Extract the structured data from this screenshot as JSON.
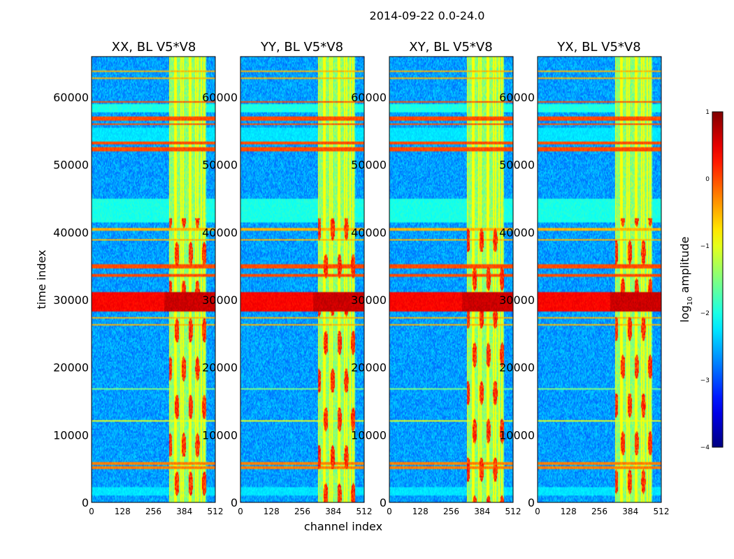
{
  "figure": {
    "title": "2014-09-22 0.0-24.0"
  },
  "chart_data": {
    "type": "heatmap",
    "shared": {
      "xlabel": "channel index",
      "ylabel": "time index",
      "xlim": [
        0,
        512
      ],
      "ylim": [
        0,
        66000
      ],
      "xticks": [
        0,
        128,
        256,
        384,
        512
      ],
      "yticks": [
        0,
        10000,
        20000,
        30000,
        40000,
        50000,
        60000
      ],
      "strong_columns": [
        320,
        345,
        350,
        370,
        380,
        405,
        410,
        430,
        440,
        455,
        465
      ],
      "horizontal_bands": [
        {
          "y0": 1000,
          "y1": 2200,
          "level": 0.35
        },
        {
          "y0": 5000,
          "y1": 5300,
          "level": 0.75
        },
        {
          "y0": 5600,
          "y1": 6000,
          "level": 0.75
        },
        {
          "y0": 11900,
          "y1": 12100,
          "level": 0.6
        },
        {
          "y0": 16700,
          "y1": 17000,
          "level": 0.5
        },
        {
          "y0": 26100,
          "y1": 26500,
          "level": 0.7
        },
        {
          "y0": 27200,
          "y1": 27500,
          "level": 0.7
        },
        {
          "y0": 28300,
          "y1": 31200,
          "level": 0.95
        },
        {
          "y0": 33400,
          "y1": 33900,
          "level": 0.8
        },
        {
          "y0": 34600,
          "y1": 35200,
          "level": 0.8
        },
        {
          "y0": 38700,
          "y1": 39000,
          "level": 0.7
        },
        {
          "y0": 40300,
          "y1": 40700,
          "level": 0.7
        },
        {
          "y0": 41500,
          "y1": 45000,
          "level": 0.4
        },
        {
          "y0": 52000,
          "y1": 52600,
          "level": 0.8
        },
        {
          "y0": 53000,
          "y1": 53500,
          "level": 0.8
        },
        {
          "y0": 53500,
          "y1": 55500,
          "level": 0.35
        },
        {
          "y0": 55800,
          "y1": 56200,
          "level": 0.8
        },
        {
          "y0": 56600,
          "y1": 57200,
          "level": 0.8
        },
        {
          "y0": 57800,
          "y1": 59000,
          "level": 0.4
        },
        {
          "y0": 59100,
          "y1": 59500,
          "level": 0.8
        },
        {
          "y0": 62800,
          "y1": 63000,
          "level": 0.7
        },
        {
          "y0": 63700,
          "y1": 63900,
          "level": 0.7
        }
      ]
    },
    "panels": [
      {
        "name": "xx",
        "title": "XX, BL V5*V8"
      },
      {
        "name": "yy",
        "title": "YY, BL V5*V8"
      },
      {
        "name": "xy",
        "title": "XY, BL V5*V8"
      },
      {
        "name": "yx",
        "title": "YX, BL V5*V8"
      }
    ],
    "colorbar": {
      "label": "log",
      "label_sub": "10",
      "label_rest": " amplitude",
      "range": [
        -4,
        1
      ],
      "ticks": [
        "1",
        "0",
        "−1",
        "−2",
        "−3",
        "−4"
      ],
      "tick_values": [
        1,
        0,
        -1,
        -2,
        -3,
        -4
      ]
    }
  }
}
